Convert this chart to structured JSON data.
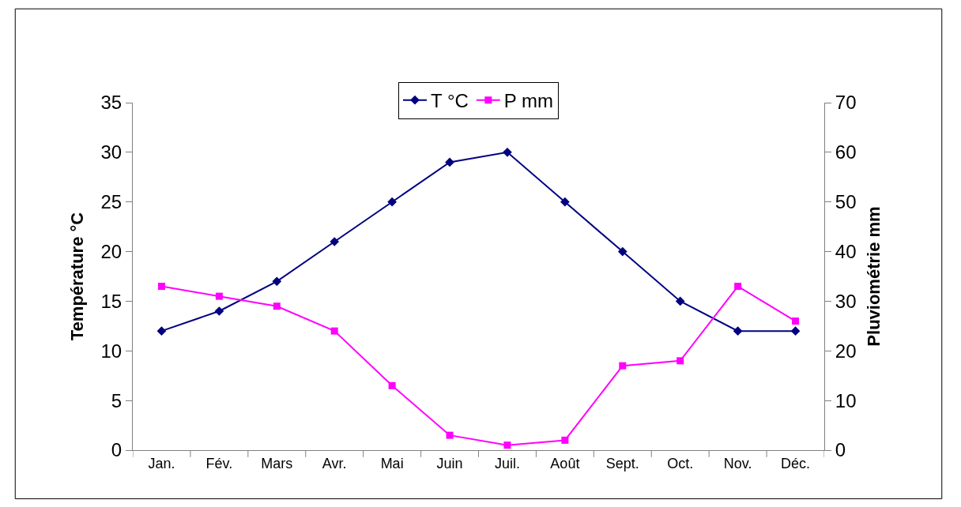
{
  "chart_data": {
    "type": "line",
    "categories": [
      "Jan.",
      "Fév.",
      "Mars",
      "Avr.",
      "Mai",
      "Juin",
      "Juil.",
      "Août",
      "Sept.",
      "Oct.",
      "Nov.",
      "Déc."
    ],
    "series": [
      {
        "name": "T °C",
        "color": "#000080",
        "marker": "diamond",
        "values": [
          12,
          14,
          17,
          21,
          25,
          29,
          30,
          25,
          20,
          15,
          12,
          12
        ]
      },
      {
        "name": "P mm",
        "color": "#ff00ff",
        "marker": "square",
        "axis": "y2",
        "values": [
          33,
          31,
          29,
          24,
          13,
          3,
          1,
          2,
          17,
          18,
          33,
          26
        ]
      }
    ],
    "ylabel": "Température °C",
    "y2label": "Pluviométrie mm",
    "ylim": [
      0,
      35
    ],
    "yticks": [
      0,
      5,
      10,
      15,
      20,
      25,
      30,
      35
    ],
    "y2lim": [
      0,
      70
    ],
    "y2ticks": [
      0,
      10,
      20,
      30,
      40,
      50,
      60,
      70
    ],
    "legend": "top",
    "line_style": "solid"
  }
}
